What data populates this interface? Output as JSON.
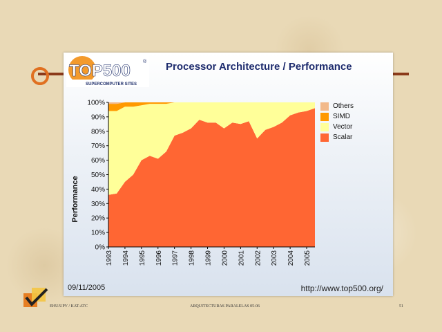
{
  "slide": {
    "title": "Processor Architecture / Performance",
    "logo_text": "TOP500",
    "logo_registered": "®",
    "logo_subtitle": "SUPERCOMPUTER SITES",
    "date": "09/11/2005",
    "url": "http://www.top500.org/"
  },
  "footer": {
    "left": "EHU/UPV  /  KAT-ATC",
    "center": "ARQUITECTURAS  PARALELAS  05-06",
    "page": "51"
  },
  "chart_data": {
    "type": "area",
    "ylabel": "Performance",
    "xlabel": "",
    "ylim": [
      0,
      100
    ],
    "y_ticks": [
      "0%",
      "10%",
      "20%",
      "30%",
      "40%",
      "50%",
      "60%",
      "70%",
      "80%",
      "90%",
      "100%"
    ],
    "x_ticks": [
      "1993",
      "1994",
      "1995",
      "1996",
      "1997",
      "1998",
      "1999",
      "2000",
      "2001",
      "2002",
      "2003",
      "2004",
      "2005"
    ],
    "x": [
      1993.0,
      1993.5,
      1994.0,
      1994.5,
      1995.0,
      1995.5,
      1996.0,
      1996.5,
      1997.0,
      1997.5,
      1998.0,
      1998.5,
      1999.0,
      1999.5,
      2000.0,
      2000.5,
      2001.0,
      2001.5,
      2002.0,
      2002.5,
      2003.0,
      2003.5,
      2004.0,
      2004.5,
      2005.0,
      2005.5
    ],
    "stacked": true,
    "series": [
      {
        "name": "Scalar",
        "color": "#ff6633",
        "values": [
          36,
          37,
          45,
          50,
          60,
          63,
          61,
          66,
          77,
          79,
          82,
          88,
          86,
          86,
          82,
          86,
          85,
          87,
          75,
          81,
          83,
          86,
          91,
          93,
          94,
          96
        ]
      },
      {
        "name": "Vector",
        "color": "#ffff99",
        "values": [
          58,
          57,
          52,
          47,
          38,
          36,
          38,
          33,
          23,
          21,
          18,
          12,
          14,
          14,
          18,
          14,
          15,
          13,
          25,
          19,
          17,
          14,
          9,
          7,
          6,
          4
        ]
      },
      {
        "name": "SIMD",
        "color": "#ff9900",
        "values": [
          5,
          5,
          3,
          3,
          2,
          1,
          1,
          1,
          0,
          0,
          0,
          0,
          0,
          0,
          0,
          0,
          0,
          0,
          0,
          0,
          0,
          0,
          0,
          0,
          0,
          0
        ]
      },
      {
        "name": "Others",
        "color": "#f2b98a",
        "values": [
          1,
          1,
          0,
          0,
          0,
          0,
          0,
          0,
          0,
          0,
          0,
          0,
          0,
          0,
          0,
          0,
          0,
          0,
          0,
          0,
          0,
          0,
          0,
          0,
          0,
          0
        ]
      }
    ],
    "legend": [
      "Others",
      "SIMD",
      "Vector",
      "Scalar"
    ],
    "legend_position": "right"
  }
}
